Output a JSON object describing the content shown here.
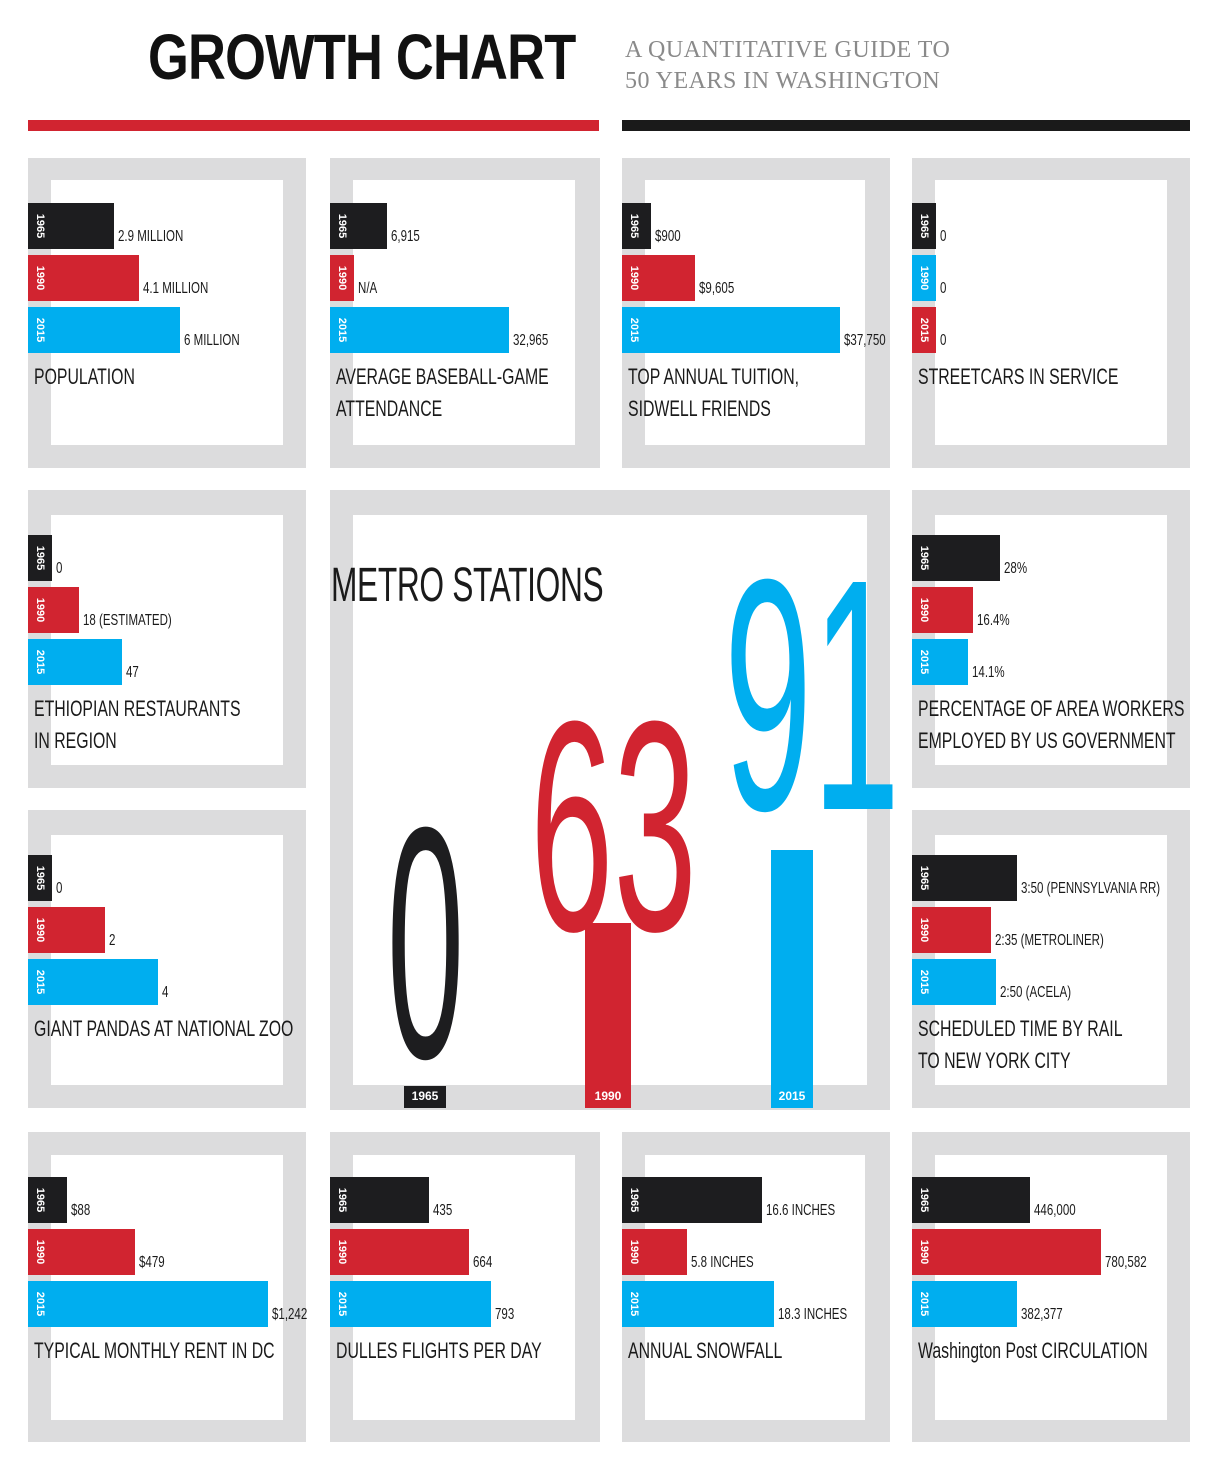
{
  "header": {
    "title": "GROWTH CHART",
    "subtitle_line1": "A QUANTITATIVE GUIDE TO",
    "subtitle_line2": "50 YEARS IN WASHINGTON"
  },
  "colors": {
    "1965": "#1d1d1f",
    "1990": "#d12430",
    "2015": "#00aeef",
    "frame": "#dcdcdd",
    "red_rule": "#d12430",
    "black_rule": "#1a1a1a"
  },
  "chart_data": [
    {
      "id": "population",
      "type": "bar",
      "orientation": "horizontal",
      "label_lines": [
        "POPULATION"
      ],
      "bars": [
        {
          "year": "1965",
          "value": 2.9,
          "text": "2.9 MILLION"
        },
        {
          "year": "1990",
          "value": 4.1,
          "text": "4.1 MILLION"
        },
        {
          "year": "2015",
          "value": 6.0,
          "text": "6 MILLION"
        }
      ]
    },
    {
      "id": "baseball",
      "type": "bar",
      "orientation": "horizontal",
      "label_lines": [
        "AVERAGE BASEBALL-GAME",
        "ATTENDANCE"
      ],
      "bars": [
        {
          "year": "1965",
          "value": 6915,
          "text": "6,915"
        },
        {
          "year": "1990",
          "value": null,
          "text": "N/A"
        },
        {
          "year": "2015",
          "value": 32965,
          "text": "32,965"
        }
      ]
    },
    {
      "id": "tuition",
      "type": "bar",
      "orientation": "horizontal",
      "label_lines": [
        "TOP ANNUAL TUITION,",
        "SIDWELL FRIENDS"
      ],
      "bars": [
        {
          "year": "1965",
          "value": 900,
          "text": "$900"
        },
        {
          "year": "1990",
          "value": 9605,
          "text": "$9,605"
        },
        {
          "year": "2015",
          "value": 37750,
          "text": "$37,750"
        }
      ]
    },
    {
      "id": "streetcars",
      "type": "bar",
      "orientation": "horizontal",
      "label_lines": [
        "STREETCARS IN SERVICE"
      ],
      "bars": [
        {
          "year": "1965",
          "value": 0,
          "text": "0"
        },
        {
          "year": "1990",
          "value": 0,
          "text": "0",
          "color_key": "2015"
        },
        {
          "year": "2015",
          "value": 0,
          "text": "0",
          "color_key": "1990"
        }
      ]
    },
    {
      "id": "ethiopian",
      "type": "bar",
      "orientation": "horizontal",
      "label_lines": [
        "ETHIOPIAN RESTAURANTS",
        "IN REGION"
      ],
      "bars": [
        {
          "year": "1965",
          "value": 0,
          "text": "0"
        },
        {
          "year": "1990",
          "value": 18,
          "text": "18 (ESTIMATED)"
        },
        {
          "year": "2015",
          "value": 47,
          "text": "47"
        }
      ]
    },
    {
      "id": "metro",
      "type": "bar",
      "orientation": "vertical",
      "title": "METRO STATIONS",
      "bars": [
        {
          "year": "1965",
          "value": 0,
          "text": "0"
        },
        {
          "year": "1990",
          "value": 63,
          "text": "63"
        },
        {
          "year": "2015",
          "value": 91,
          "text": "91"
        }
      ]
    },
    {
      "id": "govworkers",
      "type": "bar",
      "orientation": "horizontal",
      "label_lines": [
        "PERCENTAGE OF AREA WORKERS",
        "EMPLOYED BY US GOVERNMENT"
      ],
      "bars": [
        {
          "year": "1965",
          "value": 28,
          "text": "28%"
        },
        {
          "year": "1990",
          "value": 16.4,
          "text": "16.4%"
        },
        {
          "year": "2015",
          "value": 14.1,
          "text": "14.1%"
        }
      ]
    },
    {
      "id": "pandas",
      "type": "bar",
      "orientation": "horizontal",
      "label_lines": [
        "GIANT PANDAS AT NATIONAL ZOO"
      ],
      "bars": [
        {
          "year": "1965",
          "value": 0,
          "text": "0"
        },
        {
          "year": "1990",
          "value": 2,
          "text": "2"
        },
        {
          "year": "2015",
          "value": 4,
          "text": "4"
        }
      ]
    },
    {
      "id": "rail",
      "type": "bar",
      "orientation": "horizontal",
      "label_lines": [
        "SCHEDULED TIME BY RAIL",
        "TO NEW YORK CITY"
      ],
      "bars": [
        {
          "year": "1965",
          "value": 3.833,
          "text": "3:50 (PENNSYLVANIA RR)"
        },
        {
          "year": "1990",
          "value": 2.583,
          "text": "2:35 (METROLINER)"
        },
        {
          "year": "2015",
          "value": 2.833,
          "text": "2:50 (ACELA)"
        }
      ]
    },
    {
      "id": "rent",
      "type": "bar",
      "orientation": "horizontal",
      "label_lines": [
        "TYPICAL MONTHLY RENT IN DC"
      ],
      "bars": [
        {
          "year": "1965",
          "value": 88,
          "text": "$88"
        },
        {
          "year": "1990",
          "value": 479,
          "text": "$479"
        },
        {
          "year": "2015",
          "value": 1242,
          "text": "$1,242"
        }
      ]
    },
    {
      "id": "dulles",
      "type": "bar",
      "orientation": "horizontal",
      "label_lines": [
        "DULLES FLIGHTS PER DAY"
      ],
      "bars": [
        {
          "year": "1965",
          "value": 435,
          "text": "435"
        },
        {
          "year": "1990",
          "value": 664,
          "text": "664"
        },
        {
          "year": "2015",
          "value": 793,
          "text": "793"
        }
      ]
    },
    {
      "id": "snowfall",
      "type": "bar",
      "orientation": "horizontal",
      "label_lines": [
        "ANNUAL SNOWFALL"
      ],
      "bars": [
        {
          "year": "1965",
          "value": 16.6,
          "text": "16.6 INCHES"
        },
        {
          "year": "1990",
          "value": 5.8,
          "text": "5.8 INCHES"
        },
        {
          "year": "2015",
          "value": 18.3,
          "text": "18.3 INCHES"
        }
      ]
    },
    {
      "id": "wapo",
      "type": "bar",
      "orientation": "horizontal",
      "label_lines": [
        "Washington Post CIRCULATION"
      ],
      "bars": [
        {
          "year": "1965",
          "value": 446000,
          "text": "446,000"
        },
        {
          "year": "1990",
          "value": 780582,
          "text": "780,582"
        },
        {
          "year": "2015",
          "value": 382377,
          "text": "382,377"
        }
      ]
    }
  ]
}
